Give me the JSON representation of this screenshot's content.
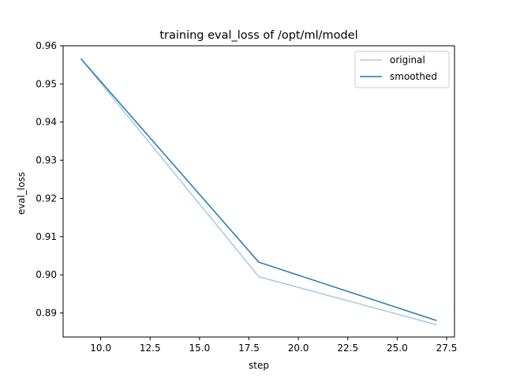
{
  "chart_data": {
    "type": "line",
    "title": "training eval_loss of /opt/ml/model",
    "xlabel": "step",
    "ylabel": "eval_loss",
    "xlim": [
      8.1,
      27.9
    ],
    "ylim": [
      0.8837,
      0.96
    ],
    "xticks": [
      10.0,
      12.5,
      15.0,
      17.5,
      20.0,
      22.5,
      25.0,
      27.5
    ],
    "xtick_labels": [
      "10.0",
      "12.5",
      "15.0",
      "17.5",
      "20.0",
      "22.5",
      "25.0",
      "27.5"
    ],
    "yticks": [
      0.89,
      0.9,
      0.91,
      0.92,
      0.93,
      0.94,
      0.95,
      0.96
    ],
    "ytick_labels": [
      "0.89",
      "0.90",
      "0.91",
      "0.92",
      "0.93",
      "0.94",
      "0.95",
      "0.96"
    ],
    "grid": false,
    "legend_position": "top-right",
    "series": [
      {
        "name": "original",
        "color": "#a6cbe3",
        "x": [
          9,
          18,
          27
        ],
        "y": [
          0.9566,
          0.8995,
          0.8869
        ]
      },
      {
        "name": "smoothed",
        "color": "#1f77b4",
        "x": [
          9,
          18,
          27
        ],
        "y": [
          0.9566,
          0.9033,
          0.888
        ]
      }
    ]
  }
}
